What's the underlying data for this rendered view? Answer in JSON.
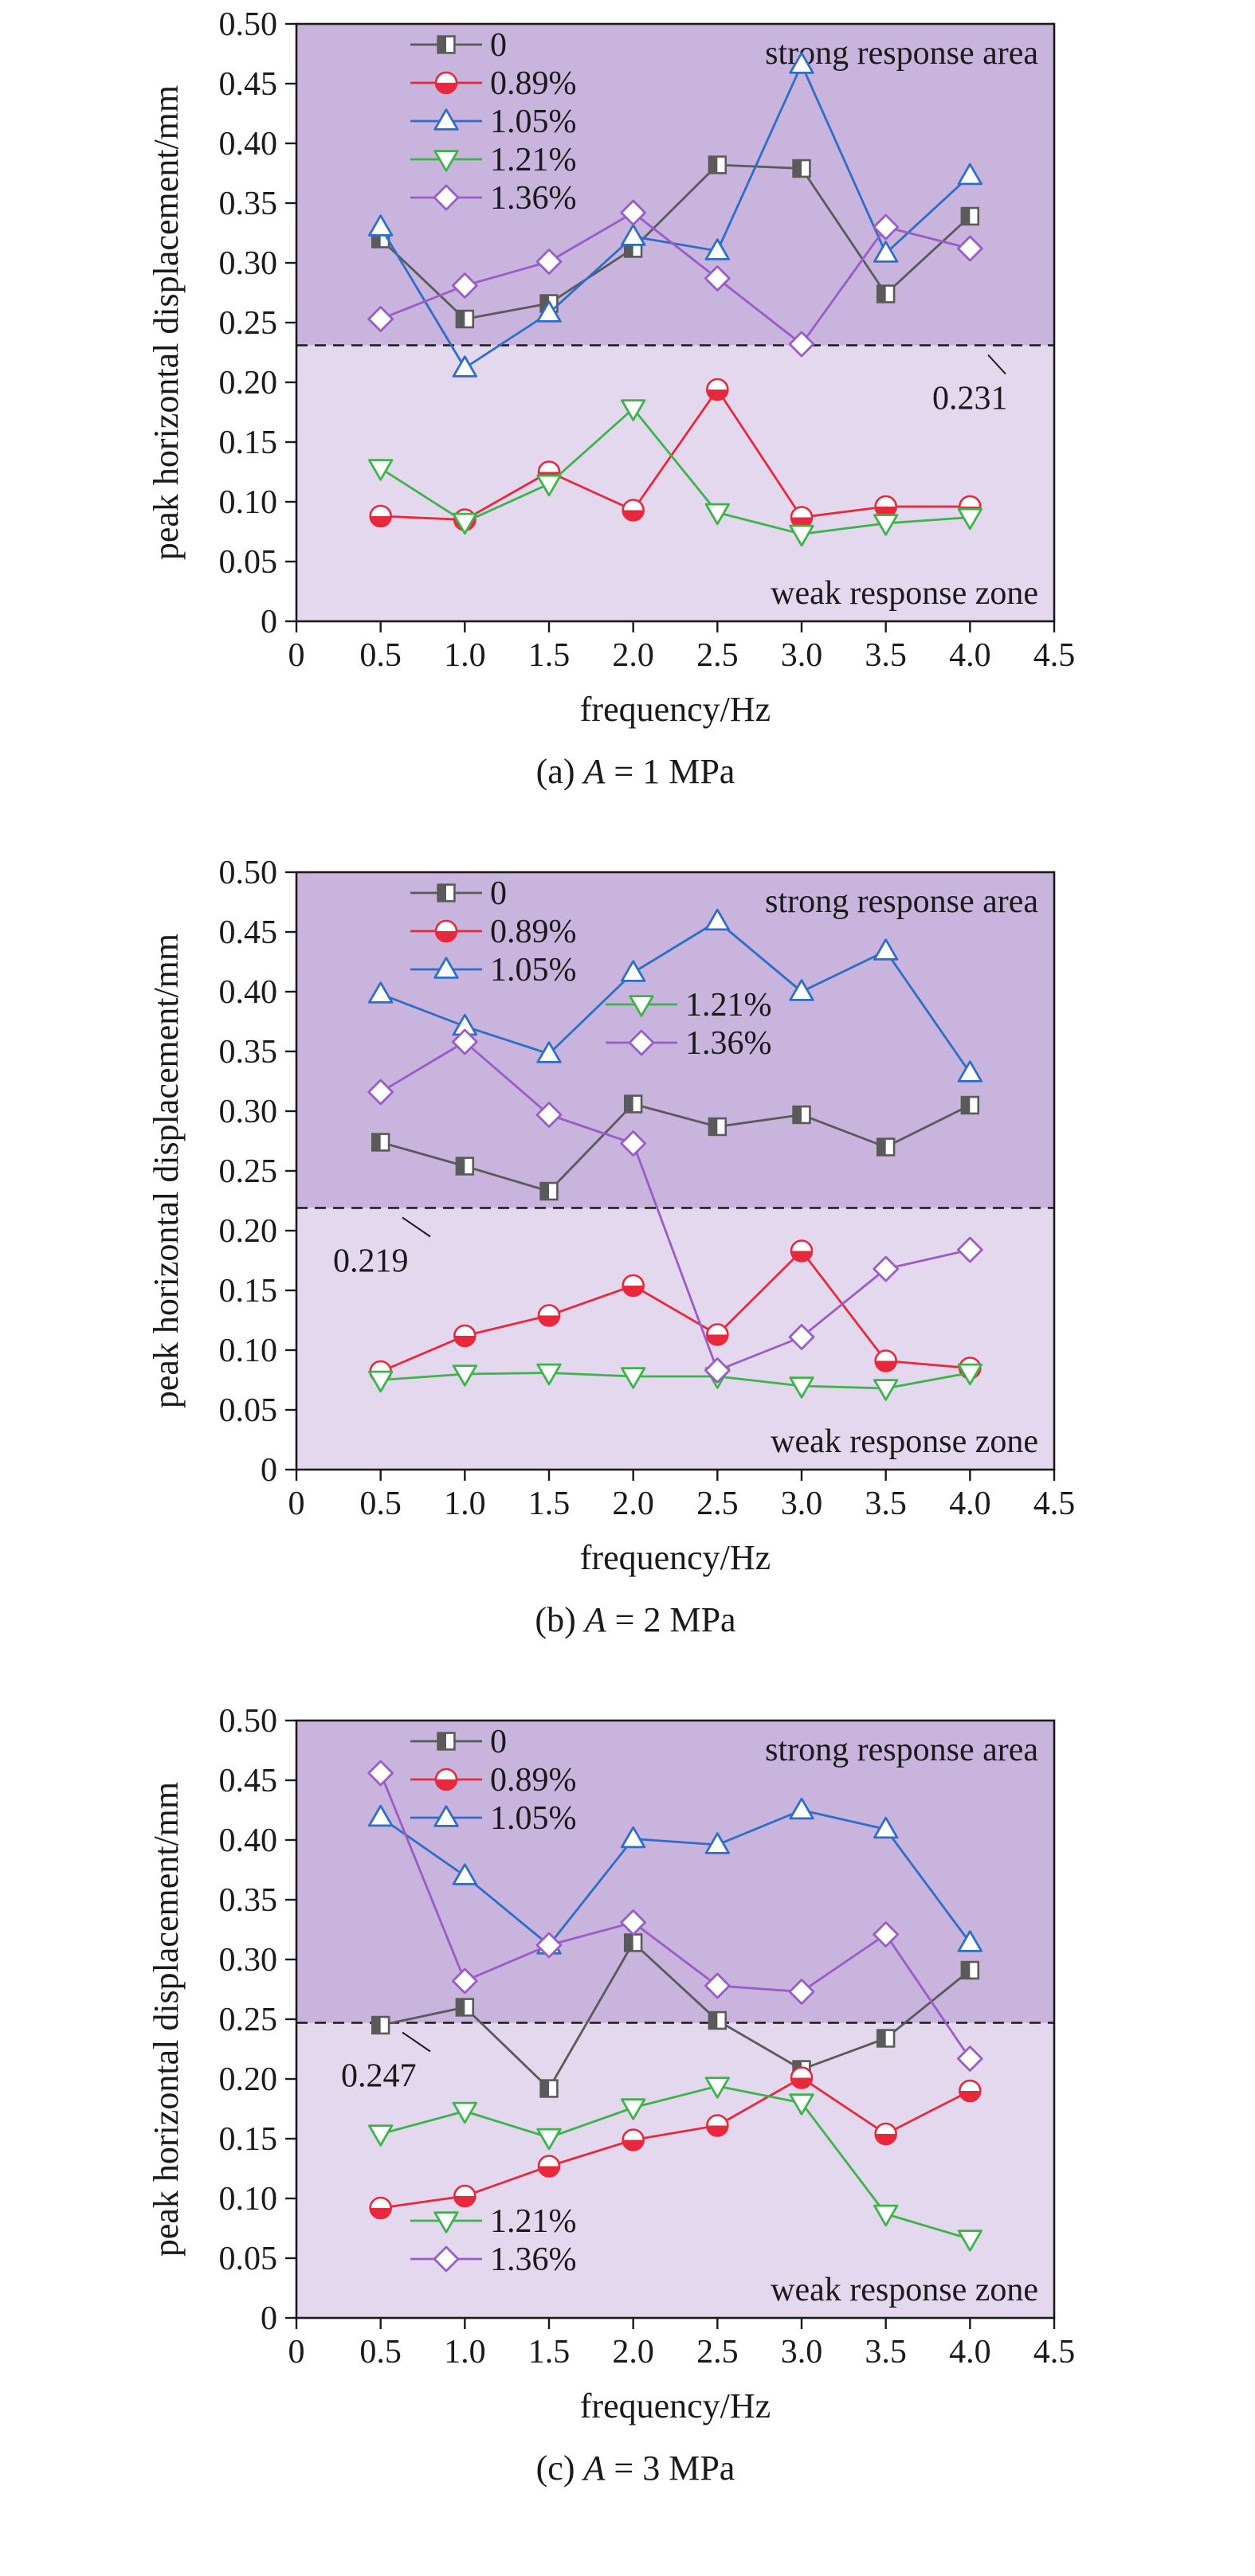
{
  "chart_data": [
    {
      "type": "line",
      "caption": {
        "prefix": "(a) ",
        "var": "A",
        "suffix": " = 1 MPa"
      },
      "xlabel": "frequency/Hz",
      "ylabel": "peak horizontal displacement/mm",
      "xlim": [
        0,
        4.5
      ],
      "ylim": [
        0,
        0.5
      ],
      "xticks": [
        "0",
        "0.5",
        "1.0",
        "1.5",
        "2.0",
        "2.5",
        "3.0",
        "3.5",
        "4.0",
        "4.5"
      ],
      "yticks": [
        "0",
        "0.05",
        "0.10",
        "0.15",
        "0.20",
        "0.25",
        "0.30",
        "0.35",
        "0.40",
        "0.45",
        "0.50"
      ],
      "threshold": {
        "value": 0.231,
        "label": "0.231"
      },
      "strong_label": "strong response area",
      "weak_label": "weak response zone",
      "x": [
        0.5,
        1.0,
        1.5,
        2.0,
        2.5,
        3.0,
        3.5,
        4.0
      ],
      "series": [
        {
          "name": "0",
          "values": [
            0.32,
            0.253,
            0.266,
            0.312,
            0.382,
            0.379,
            0.274,
            0.339
          ]
        },
        {
          "name": "0.89%",
          "values": [
            0.088,
            0.085,
            0.125,
            0.093,
            0.194,
            0.087,
            0.096,
            0.096
          ]
        },
        {
          "name": "1.05%",
          "values": [
            0.33,
            0.212,
            0.258,
            0.322,
            0.31,
            0.466,
            0.308,
            0.373
          ]
        },
        {
          "name": "1.21%",
          "values": [
            0.128,
            0.083,
            0.115,
            0.178,
            0.091,
            0.073,
            0.082,
            0.087
          ]
        },
        {
          "name": "1.36%",
          "values": [
            0.253,
            0.281,
            0.301,
            0.342,
            0.287,
            0.232,
            0.33,
            0.312
          ]
        }
      ],
      "legend_groups": [
        {
          "position": "top-left",
          "items": [
            0,
            1,
            2,
            3,
            4
          ]
        }
      ]
    },
    {
      "type": "line",
      "caption": {
        "prefix": "(b) ",
        "var": "A",
        "suffix": " = 2 MPa"
      },
      "xlabel": "frequency/Hz",
      "ylabel": "peak horizontal displacement/mm",
      "xlim": [
        0,
        4.5
      ],
      "ylim": [
        0,
        0.5
      ],
      "xticks": [
        "0",
        "0.5",
        "1.0",
        "1.5",
        "2.0",
        "2.5",
        "3.0",
        "3.5",
        "4.0",
        "4.5"
      ],
      "yticks": [
        "0",
        "0.05",
        "0.10",
        "0.15",
        "0.20",
        "0.25",
        "0.30",
        "0.35",
        "0.40",
        "0.45",
        "0.50"
      ],
      "threshold": {
        "value": 0.219,
        "label": "0.219"
      },
      "strong_label": "strong response area",
      "weak_label": "weak response zone",
      "x": [
        0.5,
        1.0,
        1.5,
        2.0,
        2.5,
        3.0,
        3.5,
        4.0
      ],
      "series": [
        {
          "name": "0",
          "values": [
            0.274,
            0.254,
            0.233,
            0.306,
            0.287,
            0.297,
            0.27,
            0.305
          ]
        },
        {
          "name": "0.89%",
          "values": [
            0.082,
            0.112,
            0.129,
            0.154,
            0.113,
            0.183,
            0.091,
            0.085
          ]
        },
        {
          "name": "1.05%",
          "values": [
            0.398,
            0.371,
            0.348,
            0.416,
            0.459,
            0.4,
            0.434,
            0.332
          ]
        },
        {
          "name": "1.21%",
          "values": [
            0.075,
            0.08,
            0.081,
            0.078,
            0.078,
            0.07,
            0.068,
            0.081
          ]
        },
        {
          "name": "1.36%",
          "values": [
            0.316,
            0.358,
            0.297,
            0.273,
            0.083,
            0.111,
            0.168,
            0.184
          ]
        }
      ],
      "legend_groups": [
        {
          "position": "top-left",
          "items": [
            0,
            1,
            2
          ]
        },
        {
          "position": "upper-center",
          "items": [
            3,
            4
          ]
        }
      ]
    },
    {
      "type": "line",
      "caption": {
        "prefix": "(c) ",
        "var": "A",
        "suffix": " = 3 MPa"
      },
      "xlabel": "frequency/Hz",
      "ylabel": "peak horizontal displacement/mm",
      "xlim": [
        0,
        4.5
      ],
      "ylim": [
        0,
        0.5
      ],
      "xticks": [
        "0",
        "0.5",
        "1.0",
        "1.5",
        "2.0",
        "2.5",
        "3.0",
        "3.5",
        "4.0",
        "4.5"
      ],
      "yticks": [
        "0",
        "0.05",
        "0.10",
        "0.15",
        "0.20",
        "0.25",
        "0.30",
        "0.35",
        "0.40",
        "0.45",
        "0.50"
      ],
      "threshold": {
        "value": 0.247,
        "label": "0.247"
      },
      "strong_label": "strong response area",
      "weak_label": "weak response zone",
      "x": [
        0.5,
        1.0,
        1.5,
        2.0,
        2.5,
        3.0,
        3.5,
        4.0
      ],
      "series": [
        {
          "name": "0",
          "values": [
            0.245,
            0.26,
            0.192,
            0.314,
            0.249,
            0.208,
            0.234,
            0.291
          ]
        },
        {
          "name": "0.89%",
          "values": [
            0.092,
            0.102,
            0.127,
            0.149,
            0.161,
            0.201,
            0.154,
            0.19
          ]
        },
        {
          "name": "1.05%",
          "values": [
            0.419,
            0.37,
            0.312,
            0.401,
            0.396,
            0.425,
            0.409,
            0.314
          ]
        },
        {
          "name": "1.21%",
          "values": [
            0.154,
            0.173,
            0.151,
            0.176,
            0.194,
            0.18,
            0.087,
            0.066
          ]
        },
        {
          "name": "1.36%",
          "values": [
            0.456,
            0.282,
            0.312,
            0.331,
            0.278,
            0.273,
            0.321,
            0.217
          ]
        }
      ],
      "legend_groups": [
        {
          "position": "top-left",
          "items": [
            0,
            1,
            2
          ]
        },
        {
          "position": "bottom-left",
          "items": [
            3,
            4
          ]
        }
      ]
    }
  ],
  "colors": {
    "strong_bg": "#c8b4dc",
    "weak_bg": "#e4d8ee",
    "axis": "#1a1a1a",
    "series": [
      "#5a5a5a",
      "#e8283c",
      "#2e6ec8",
      "#3cb44a",
      "#9a5cc8"
    ]
  },
  "markers": [
    "square",
    "circle",
    "triangle-up",
    "triangle-down",
    "diamond"
  ]
}
